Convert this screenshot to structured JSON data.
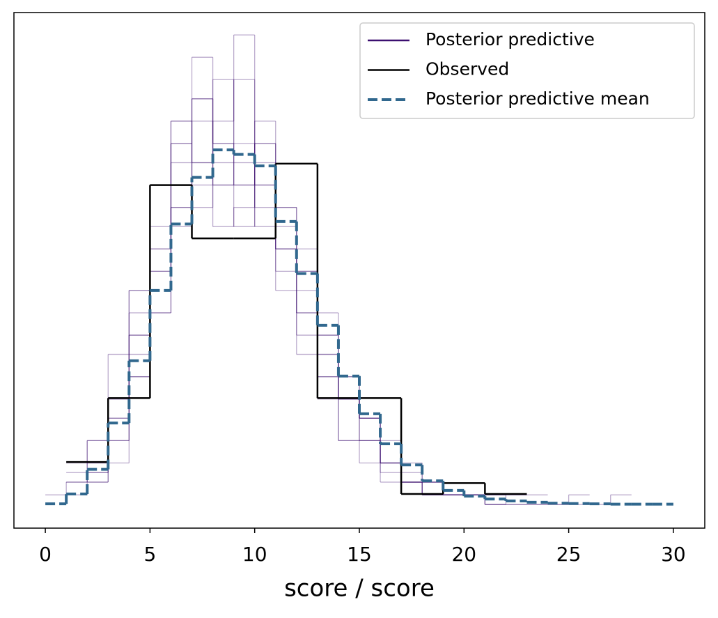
{
  "chart_data": {
    "type": "histogram",
    "xlabel": "score / score",
    "xlim": [
      -1.5,
      31.5
    ],
    "xticks": [
      0,
      5,
      10,
      15,
      20,
      25,
      30
    ],
    "ylim": [
      -0.0074,
      0.154
    ],
    "legend": "upper right",
    "series": [
      {
        "name": "Posterior predictive",
        "color": "#3b0f70",
        "opacity": 0.35,
        "draws": [
          {
            "bins": [
              1,
              2,
              3,
              4,
              5,
              6,
              7,
              8,
              9,
              10,
              11,
              12,
              13,
              14,
              15,
              16,
              17,
              18,
              19,
              20,
              21
            ],
            "values": [
              0.013,
              0.02,
              0.047,
              0.067,
              0.1,
              0.12,
              0.127,
              0.113,
              0.1,
              0.087,
              0.067,
              0.047,
              0.033,
              0.02,
              0.013,
              0.01,
              0.007,
              0.003,
              0.003,
              0.003
            ]
          },
          {
            "bins": [
              2,
              3,
              4,
              5,
              6,
              7,
              8,
              9,
              10,
              11,
              12,
              13,
              14,
              15,
              16,
              17,
              18,
              19,
              20,
              21,
              22,
              23,
              24
            ],
            "values": [
              0.007,
              0.027,
              0.053,
              0.08,
              0.093,
              0.14,
              0.107,
              0.1,
              0.113,
              0.073,
              0.06,
              0.047,
              0.033,
              0.027,
              0.013,
              0.007,
              0.007,
              0.003,
              0.003,
              0.003,
              0.003,
              0.003
            ]
          },
          {
            "bins": [
              1,
              2,
              3,
              4,
              5,
              6,
              7,
              8,
              9,
              10,
              11,
              12,
              13,
              14,
              15,
              16,
              17,
              18,
              19,
              20,
              21,
              22
            ],
            "values": [
              0.003,
              0.01,
              0.02,
              0.04,
              0.073,
              0.087,
              0.093,
              0.12,
              0.147,
              0.107,
              0.08,
              0.067,
              0.053,
              0.033,
              0.027,
              0.013,
              0.007,
              0.007,
              0.003,
              0.003,
              0.003
            ]
          },
          {
            "bins": [
              0,
              1,
              2,
              3,
              4,
              5,
              6,
              7,
              8,
              9,
              10,
              11,
              12,
              13,
              14,
              15,
              16,
              17,
              18,
              19,
              20,
              21
            ],
            "values": [
              0.003,
              0.007,
              0.013,
              0.033,
              0.06,
              0.073,
              0.113,
              0.127,
              0.1,
              0.133,
              0.1,
              0.08,
              0.053,
              0.04,
              0.02,
              0.02,
              0.013,
              0.007,
              0.003,
              0.003,
              0.003
            ]
          },
          {
            "bins": [
              1,
              2,
              3,
              4,
              5,
              6,
              7,
              8,
              9,
              10,
              11,
              12,
              13,
              14,
              15,
              16,
              17,
              18,
              19,
              20,
              21,
              22,
              23,
              24,
              25,
              26
            ],
            "values": [
              0.007,
              0.01,
              0.033,
              0.053,
              0.06,
              0.093,
              0.107,
              0.133,
              0.113,
              0.1,
              0.093,
              0.08,
              0.04,
              0.033,
              0.02,
              0.007,
              0.007,
              0.003,
              0.003,
              0.003,
              0,
              0,
              0,
              0,
              0.003
            ]
          },
          {
            "bins": [
              2,
              3,
              4,
              5,
              6,
              7,
              8,
              9,
              10,
              11,
              12,
              13,
              14,
              15,
              16,
              17,
              18,
              19,
              20,
              21,
              22
            ],
            "values": [
              0.013,
              0.02,
              0.04,
              0.08,
              0.12,
              0.1,
              0.087,
              0.093,
              0.12,
              0.093,
              0.073,
              0.053,
              0.04,
              0.027,
              0.013,
              0.01,
              0.007,
              0.003,
              0.003,
              0.003
            ]
          },
          {
            "bins": [
              1,
              2,
              3,
              4,
              5,
              6,
              7,
              8,
              9,
              10,
              11,
              12,
              13,
              14,
              15,
              16,
              17,
              18,
              19,
              20,
              21,
              22,
              23
            ],
            "values": [
              0.01,
              0.02,
              0.027,
              0.067,
              0.087,
              0.113,
              0.107,
              0.1,
              0.087,
              0.113,
              0.08,
              0.06,
              0.047,
              0.033,
              0.02,
              0.013,
              0.007,
              0.003,
              0.003,
              0.003,
              0,
              0.003
            ]
          },
          {
            "bins": [
              2,
              3,
              4,
              5,
              6,
              7,
              8,
              9,
              10,
              11,
              12,
              13,
              14,
              15,
              16,
              17,
              18,
              19,
              20,
              21,
              22,
              23,
              24,
              25,
              26,
              27,
              28
            ],
            "values": [
              0.007,
              0.013,
              0.047,
              0.06,
              0.107,
              0.12,
              0.113,
              0.107,
              0.093,
              0.087,
              0.073,
              0.06,
              0.04,
              0.027,
              0.02,
              0.013,
              0.007,
              0.003,
              0.003,
              0,
              0,
              0,
              0,
              0,
              0,
              0.003
            ]
          }
        ]
      },
      {
        "name": "Observed",
        "color": "#000000",
        "bins": [
          1,
          3,
          5,
          7,
          9,
          11,
          13,
          15,
          17,
          19,
          21,
          23
        ],
        "values": [
          0.0133,
          0.0333,
          0.1,
          0.0833,
          0.0833,
          0.1067,
          0.0333,
          0.0333,
          0.0033,
          0.0067,
          0.0033
        ]
      },
      {
        "name": "Posterior predictive mean",
        "color": "#31688e",
        "dashed": true,
        "bins": [
          0,
          1,
          2,
          3,
          4,
          5,
          6,
          7,
          8,
          9,
          10,
          11,
          12,
          13,
          14,
          15,
          16,
          17,
          18,
          19,
          20,
          21,
          22,
          23,
          24,
          25,
          26,
          27,
          28,
          29,
          30
        ],
        "values": [
          0.0002,
          0.0033,
          0.011,
          0.0255,
          0.045,
          0.067,
          0.0878,
          0.1024,
          0.111,
          0.1096,
          0.106,
          0.0886,
          0.0723,
          0.0561,
          0.0402,
          0.0284,
          0.019,
          0.0124,
          0.0074,
          0.0044,
          0.0026,
          0.0017,
          0.0011,
          0.0007,
          0.0004,
          0.0003,
          0.0002,
          0.0001,
          0.0001,
          0.0001
        ]
      }
    ]
  }
}
